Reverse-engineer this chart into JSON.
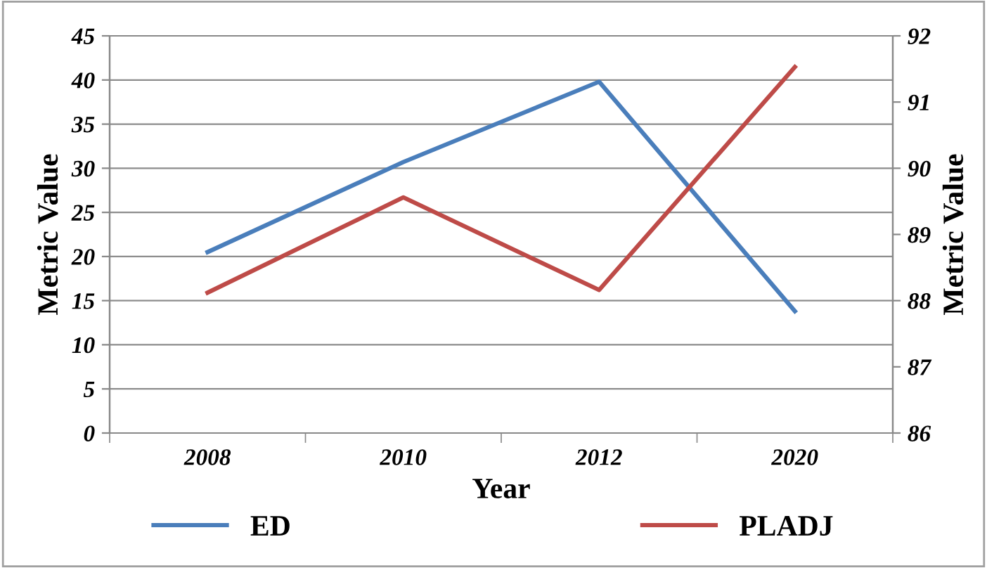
{
  "chart_data": {
    "type": "line",
    "xlabel": "Year",
    "ylabel": "Metric Value",
    "y2label": "Metric Value",
    "categories": [
      "2008",
      "2010",
      "2012",
      "2020"
    ],
    "series": [
      {
        "name": "ED",
        "color": "#4a7ebb",
        "values": [
          20.5,
          30.7,
          39.8,
          13.8
        ]
      },
      {
        "name": "PLADJ",
        "color": "#be4b48",
        "axis": "y2",
        "values": [
          88.12,
          89.56,
          88.16,
          91.53
        ]
      }
    ],
    "ylim": [
      0,
      45
    ],
    "yticks": [
      0,
      5,
      10,
      15,
      20,
      25,
      30,
      35,
      40,
      45
    ],
    "y2lim": [
      86,
      92
    ],
    "y2ticks": [
      86,
      87,
      88,
      89,
      90,
      91,
      92
    ],
    "grid": "y",
    "legend": "bottom",
    "marker": "none",
    "line_style": "solid"
  }
}
